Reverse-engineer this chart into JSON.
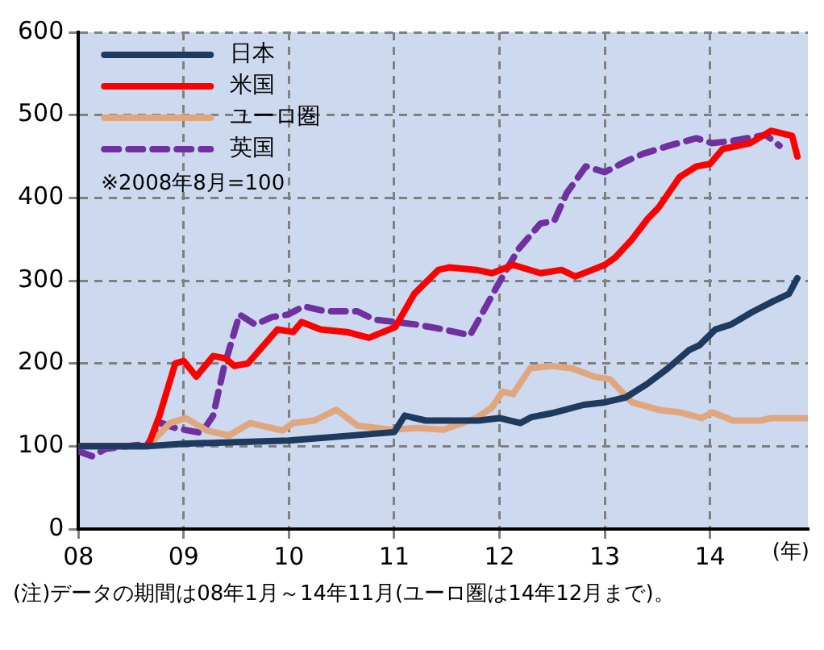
{
  "chart_data": {
    "type": "line",
    "xlabel": "(年)",
    "annotations": [
      "※2008年8月=100",
      "(注)データの期間は08年1月～14年11月(ユーロ圏は14年12月まで)。"
    ],
    "xlim": [
      8,
      14.93
    ],
    "xticks": [
      {
        "value": 8,
        "label": "08"
      },
      {
        "value": 9,
        "label": "09"
      },
      {
        "value": 10,
        "label": "10"
      },
      {
        "value": 11,
        "label": "11"
      },
      {
        "value": 12,
        "label": "12"
      },
      {
        "value": 13,
        "label": "13"
      },
      {
        "value": 14,
        "label": "14"
      }
    ],
    "ylim": [
      0,
      600
    ],
    "yticks": [
      0,
      100,
      200,
      300,
      400,
      500,
      600
    ],
    "grid": true,
    "legend": "top left",
    "marker": "none",
    "series": [
      {
        "name": "日本",
        "color": "#1f3a5f",
        "line_style": "solid",
        "x": [
          8.0,
          8.66,
          9.0,
          10.0,
          11.0,
          11.1,
          11.3,
          11.8,
          12.0,
          12.2,
          12.3,
          12.5,
          12.8,
          13.0,
          13.2,
          13.4,
          13.6,
          13.8,
          13.9,
          14.05,
          14.2,
          14.4,
          14.6,
          14.75,
          14.83
        ],
        "values": [
          100,
          100,
          103,
          107,
          117,
          137,
          131,
          131,
          134,
          128,
          135,
          140,
          150,
          153,
          159,
          175,
          194,
          216,
          222,
          241,
          247,
          262,
          275,
          284,
          303
        ]
      },
      {
        "name": "米国",
        "color": "#ff0000",
        "line_style": "solid",
        "x": [
          8.0,
          8.66,
          8.77,
          8.92,
          9.0,
          9.12,
          9.28,
          9.4,
          9.48,
          9.61,
          9.89,
          10.04,
          10.12,
          10.3,
          10.55,
          10.76,
          11.01,
          11.19,
          11.42,
          11.52,
          11.78,
          11.93,
          12.13,
          12.39,
          12.59,
          12.72,
          13.0,
          13.1,
          13.26,
          13.41,
          13.51,
          13.71,
          13.87,
          14.0,
          14.12,
          14.38,
          14.58,
          14.78,
          14.83
        ],
        "values": [
          100,
          100,
          137,
          200,
          203,
          184,
          209,
          206,
          197,
          200,
          241,
          238,
          250,
          241,
          238,
          231,
          244,
          284,
          313,
          316,
          313,
          309,
          319,
          309,
          313,
          305,
          319,
          328,
          350,
          375,
          388,
          425,
          438,
          441,
          459,
          466,
          481,
          475,
          450
        ]
      },
      {
        "name": "ユーロ圏",
        "color": "#e0a77f",
        "line_style": "solid",
        "x": [
          8.0,
          8.66,
          8.87,
          9.02,
          9.22,
          9.43,
          9.63,
          9.94,
          10.04,
          10.24,
          10.45,
          10.65,
          10.96,
          11.21,
          11.47,
          11.78,
          11.93,
          12.03,
          12.13,
          12.29,
          12.49,
          12.69,
          12.9,
          13.05,
          13.26,
          13.51,
          13.71,
          13.92,
          14.02,
          14.22,
          14.48,
          14.58,
          14.92
        ],
        "values": [
          100,
          100,
          128,
          134,
          119,
          113,
          128,
          119,
          128,
          131,
          144,
          125,
          120,
          122,
          120,
          134,
          147,
          166,
          163,
          194,
          197,
          194,
          184,
          181,
          153,
          144,
          141,
          134,
          141,
          131,
          131,
          134,
          134
        ]
      },
      {
        "name": "英国",
        "color": "#7030a0",
        "line_style": "dashed",
        "x": [
          8.0,
          8.13,
          8.26,
          8.66,
          8.79,
          8.92,
          9.17,
          9.28,
          9.38,
          9.53,
          9.68,
          9.84,
          9.99,
          10.14,
          10.35,
          10.65,
          10.81,
          11.01,
          11.21,
          11.47,
          11.72,
          11.83,
          11.98,
          12.18,
          12.39,
          12.52,
          12.64,
          12.82,
          13.0,
          13.2,
          13.36,
          13.61,
          13.87,
          14.02,
          14.22,
          14.53,
          14.66
        ],
        "values": [
          94,
          88,
          97,
          103,
          128,
          122,
          116,
          137,
          194,
          259,
          247,
          256,
          259,
          269,
          263,
          263,
          253,
          250,
          247,
          241,
          234,
          259,
          294,
          338,
          369,
          372,
          406,
          438,
          431,
          444,
          453,
          463,
          472,
          466,
          469,
          476,
          463
        ]
      }
    ]
  }
}
